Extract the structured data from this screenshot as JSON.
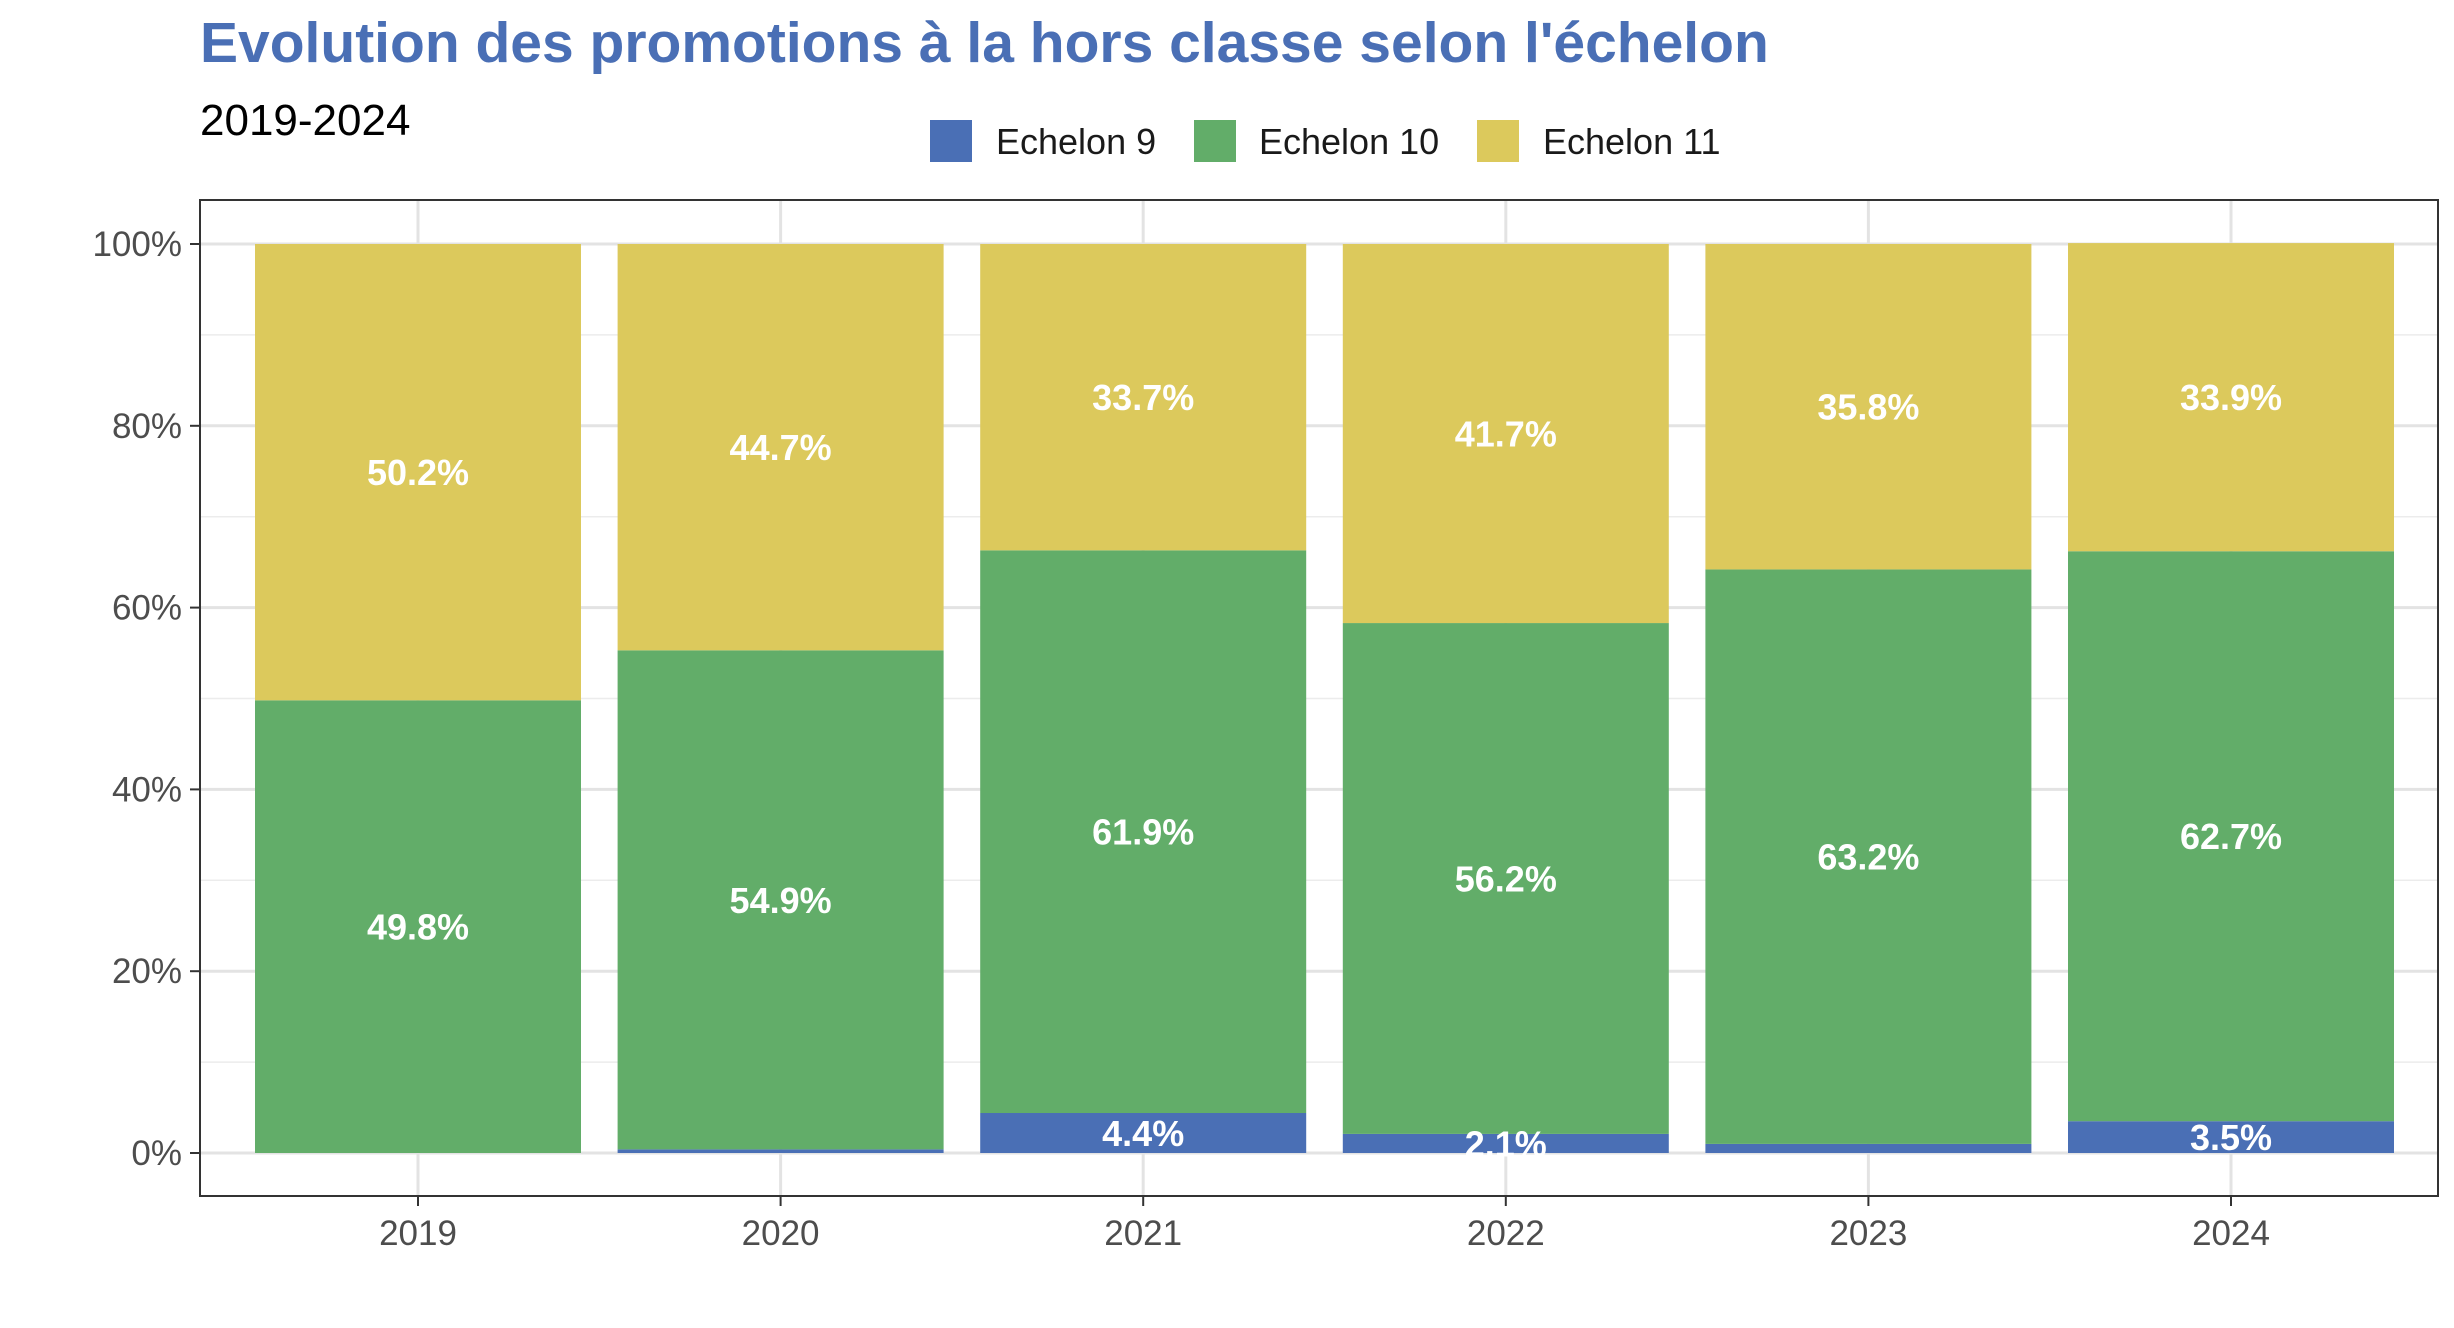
{
  "chart_data": {
    "type": "bar",
    "stacked": true,
    "title": "Evolution des promotions à la hors classe selon l'échelon",
    "subtitle": "2019-2024",
    "xlabel": "",
    "ylabel": "",
    "categories": [
      "2019",
      "2020",
      "2021",
      "2022",
      "2023",
      "2024"
    ],
    "series": [
      {
        "name": "Echelon 9",
        "color": "#4a6fb5",
        "values": [
          0.0,
          0.4,
          4.4,
          2.1,
          1.0,
          3.5
        ],
        "labels": [
          "",
          "",
          "4.4%",
          "2.1%",
          "",
          "3.5%"
        ]
      },
      {
        "name": "Echelon 10",
        "color": "#62ad69",
        "values": [
          49.8,
          54.9,
          61.9,
          56.2,
          63.2,
          62.7
        ],
        "labels": [
          "49.8%",
          "54.9%",
          "61.9%",
          "56.2%",
          "63.2%",
          "62.7%"
        ]
      },
      {
        "name": "Echelon 11",
        "color": "#dcc95c",
        "values": [
          50.2,
          44.7,
          33.7,
          41.7,
          35.8,
          33.9
        ],
        "labels": [
          "50.2%",
          "44.7%",
          "33.7%",
          "41.7%",
          "35.8%",
          "33.9%"
        ]
      }
    ],
    "ylim": [
      0,
      100
    ],
    "yticks": [
      0,
      20,
      40,
      60,
      80,
      100
    ],
    "ytick_labels": [
      "0%",
      "20%",
      "40%",
      "60%",
      "80%",
      "100%"
    ],
    "grid": true,
    "legend_position": "top",
    "title_color": "#4a6fb5"
  }
}
